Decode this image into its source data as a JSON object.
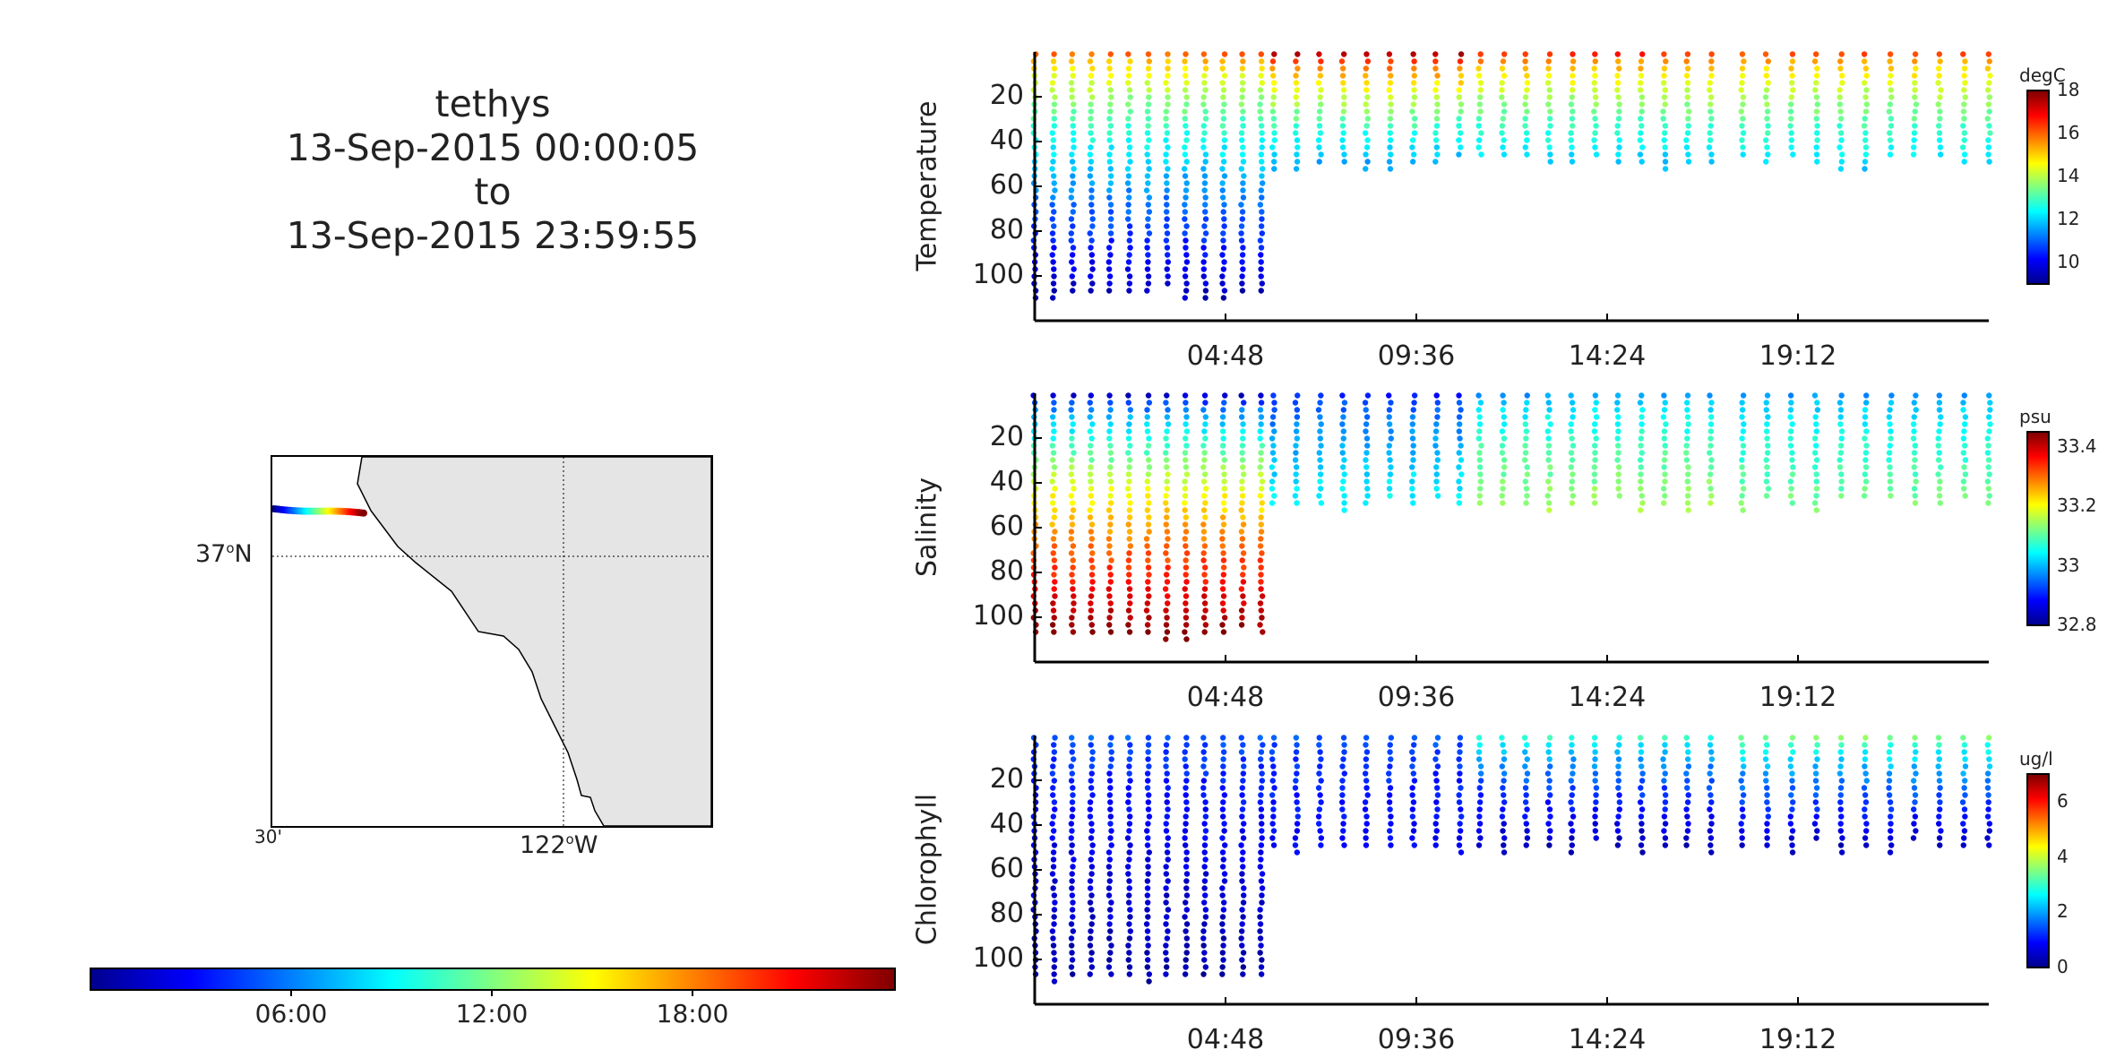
{
  "header": {
    "lines": [
      "tethys",
      "13-Sep-2015 00:00:05",
      "to",
      "13-Sep-2015 23:59:55"
    ]
  },
  "map": {
    "lat_label": "37",
    "lat_suffix": "N",
    "lon_label": "122",
    "lon_suffix": "W",
    "lon_minor_label": "30'",
    "degree_symbol": "o",
    "land_color": "#e5e5e5"
  },
  "time_colorbar": {
    "ticks": [
      "06:00",
      "12:00",
      "18:00"
    ]
  },
  "colormap": "jet",
  "chart_data": [
    {
      "type": "scatter",
      "ylabel": "Temperature",
      "unit": "degC",
      "yticks": [
        "20",
        "40",
        "60",
        "80",
        "100"
      ],
      "ylim": [
        120,
        0
      ],
      "xticks": [
        "04:48",
        "09:36",
        "14:24",
        "19:12"
      ],
      "xlim_hours": [
        0,
        24
      ],
      "color_range": [
        9,
        18
      ],
      "colorbar_ticks": [
        "18",
        "16",
        "14",
        "12",
        "10"
      ],
      "profiles": [
        {
          "t_start": 0.0,
          "t_end": 5.7,
          "max_depth": 108,
          "surface": 16,
          "bottom": 9.5
        },
        {
          "t_start": 6.0,
          "t_end": 10.7,
          "max_depth": 50,
          "surface": 17.5,
          "bottom": 11.5
        },
        {
          "t_start": 11.2,
          "t_end": 17.0,
          "max_depth": 50,
          "surface": 16.5,
          "bottom": 11.8
        },
        {
          "t_start": 17.8,
          "t_end": 24.0,
          "max_depth": 50,
          "surface": 16.2,
          "bottom": 12.0
        }
      ]
    },
    {
      "type": "scatter",
      "ylabel": "Salinity",
      "unit": "psu",
      "yticks": [
        "20",
        "40",
        "60",
        "80",
        "100"
      ],
      "ylim": [
        120,
        0
      ],
      "xticks": [
        "04:48",
        "09:36",
        "14:24",
        "19:12"
      ],
      "xlim_hours": [
        0,
        24
      ],
      "color_range": [
        32.8,
        33.45
      ],
      "colorbar_ticks": [
        "33.4",
        "33.2",
        "33",
        "32.8"
      ],
      "profiles": [
        {
          "t_start": 0.0,
          "t_end": 5.7,
          "max_depth": 108,
          "surface": 32.85,
          "bottom": 33.45
        },
        {
          "t_start": 6.0,
          "t_end": 10.7,
          "max_depth": 50,
          "surface": 32.9,
          "bottom": 33.05
        },
        {
          "t_start": 11.2,
          "t_end": 17.0,
          "max_depth": 50,
          "surface": 32.98,
          "bottom": 33.15
        },
        {
          "t_start": 17.8,
          "t_end": 24.0,
          "max_depth": 50,
          "surface": 32.98,
          "bottom": 33.12
        }
      ]
    },
    {
      "type": "scatter",
      "ylabel": "Chlorophyll",
      "unit": "ug/l",
      "yticks": [
        "20",
        "40",
        "60",
        "80",
        "100"
      ],
      "ylim": [
        120,
        0
      ],
      "xticks": [
        "04:48",
        "09:36",
        "14:24",
        "19:12"
      ],
      "xlim_hours": [
        0,
        24
      ],
      "color_range": [
        0,
        7
      ],
      "colorbar_ticks": [
        "6",
        "4",
        "2",
        "0"
      ],
      "profiles": [
        {
          "t_start": 0.0,
          "t_end": 5.7,
          "max_depth": 108,
          "surface": 1.5,
          "bottom": 0.3
        },
        {
          "t_start": 6.0,
          "t_end": 10.7,
          "max_depth": 50,
          "surface": 1.5,
          "bottom": 0.8
        },
        {
          "t_start": 11.2,
          "t_end": 17.0,
          "max_depth": 50,
          "surface": 3.0,
          "bottom": 0.3
        },
        {
          "t_start": 17.8,
          "t_end": 24.0,
          "max_depth": 50,
          "surface": 3.5,
          "bottom": 0.4
        }
      ]
    }
  ]
}
